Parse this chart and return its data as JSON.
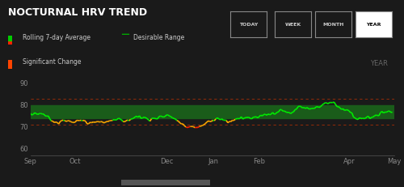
{
  "title": "NOCTURNAL HRV TREND",
  "bg_color": "#1a1a1a",
  "plot_bg_color": "#1a1a1a",
  "title_color": "#ffffff",
  "title_fontsize": 9,
  "year_label": "YEAR",
  "year_label_color": "#888888",
  "buttons": [
    "TODAY",
    "WEEK",
    "MONTH",
    "YEAR"
  ],
  "active_button": "YEAR",
  "legend": [
    {
      "label": "Rolling 7-day Average",
      "color_left": "#ff4444",
      "color_right": "#00cc00"
    },
    {
      "label": "Desirable Range",
      "color": "#00aa00"
    },
    {
      "label": "Significant Change",
      "color": "#ff4400"
    }
  ],
  "desirable_range": [
    74,
    80
  ],
  "desirable_range_color": "#1a5c1a",
  "dashed_lines": [
    71,
    83
  ],
  "dashed_color": "#cc3300",
  "yticks": [
    60,
    70,
    80,
    90
  ],
  "xticks": [
    "Sep",
    "Oct",
    "Dec",
    "Jan",
    "Feb",
    "Apr",
    "May"
  ],
  "xtick_positions": [
    0,
    30,
    91,
    122,
    153,
    213,
    243
  ],
  "grid_color": "#333333",
  "line_color_normal": "#00ee00",
  "line_color_stress": "#ff4400",
  "line_width": 1.2,
  "scrollbar_color": "#555555",
  "ylim": [
    57,
    93
  ]
}
